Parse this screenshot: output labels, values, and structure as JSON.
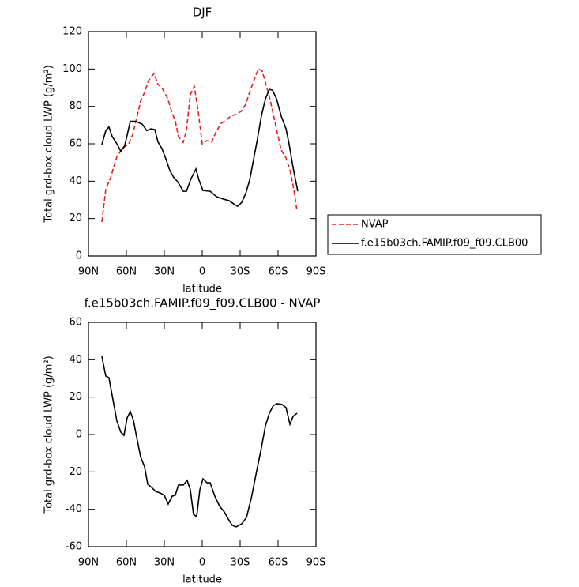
{
  "chart_data": [
    {
      "type": "line",
      "title": "DJF",
      "x_label": "latitude",
      "y_label": "Total grd-box cloud LWP (g/m²)",
      "xlim": [
        90,
        -90
      ],
      "ylim": [
        0,
        120
      ],
      "xticks": [
        {
          "value": 90,
          "label": "90N"
        },
        {
          "value": 60,
          "label": "60N"
        },
        {
          "value": 30,
          "label": "30N"
        },
        0,
        {
          "value": -30,
          "label": "30S"
        },
        {
          "value": -60,
          "label": "60S"
        },
        {
          "value": -90,
          "label": "90S"
        }
      ],
      "yticks": [
        0,
        20,
        40,
        60,
        80,
        100,
        120
      ],
      "legend_position": "right",
      "series": [
        {
          "name": "NVAP",
          "color": "#e8201e",
          "dash": "dashed",
          "x": [
            79.4,
            76.3,
            72.5,
            67.5,
            63.1,
            58.1,
            55,
            51.9,
            48.8,
            45.6,
            42.5,
            38.1,
            35,
            31.9,
            27.5,
            23.8,
            21.3,
            18.8,
            15,
            12.5,
            9.4,
            6.3,
            3.1,
            0,
            -3.8,
            -7.5,
            -10.6,
            -15,
            -19.4,
            -23.1,
            -26.9,
            -30.6,
            -34.4,
            -37.5,
            -40.6,
            -44.4,
            -47.5,
            -50.6,
            -53.1,
            -56.3,
            -59.4,
            -62.5,
            -66.3,
            -69.4,
            -72.5,
            -75
          ],
          "values": [
            18.2,
            35.5,
            41.8,
            53.2,
            57.5,
            60,
            65,
            73.5,
            82.8,
            87.5,
            93.8,
            97.6,
            91.7,
            90,
            84.5,
            76.5,
            72.2,
            63.8,
            60.8,
            67.2,
            86.2,
            90.8,
            76.9,
            60,
            61.7,
            60.8,
            65.9,
            71,
            72.7,
            75.2,
            75.6,
            77.3,
            81.1,
            87.5,
            93.4,
            100.1,
            98.9,
            91.3,
            85.3,
            75.6,
            65.9,
            56.6,
            52.4,
            46,
            35.5,
            24.1
          ]
        },
        {
          "name": "f.e15b03ch.FAMIP.f09_f09.CLB00",
          "color": "#000000",
          "dash": "solid",
          "x": [
            79.4,
            76.3,
            73.8,
            71.3,
            67.5,
            64.4,
            61.3,
            56.9,
            52.5,
            47.5,
            43.8,
            40.6,
            37.5,
            35,
            31.9,
            28.8,
            25.6,
            22.5,
            19.4,
            15,
            12.5,
            8.8,
            5,
            2.5,
            -0.6,
            -6.3,
            -11.3,
            -16.9,
            -21.3,
            -25.6,
            -28.1,
            -31.3,
            -34.4,
            -37.5,
            -40.6,
            -43.8,
            -46.9,
            -50,
            -53.1,
            -55.6,
            -58.8,
            -62.5,
            -66.3,
            -68.8,
            -71.9,
            -75.6
          ],
          "values": [
            59.6,
            67,
            69,
            64,
            60,
            56,
            59,
            72,
            72,
            70.5,
            67,
            68,
            67.6,
            61,
            57.5,
            52,
            45.6,
            42,
            39.7,
            34.6,
            34.6,
            41.4,
            46.5,
            40.5,
            35,
            34.6,
            31.7,
            30.4,
            29.6,
            27.5,
            26.6,
            28.7,
            33.4,
            40.5,
            51.5,
            63,
            75.2,
            84,
            89.1,
            88.7,
            84,
            74.8,
            68,
            59.6,
            47.3,
            34.6
          ]
        }
      ]
    },
    {
      "type": "line",
      "title": "f.e15b03ch.FAMIP.f09_f09.CLB00 - NVAP",
      "x_label": "latitude",
      "y_label": "Total grd-box cloud LWP (g/m²)",
      "xlim": [
        90,
        -90
      ],
      "ylim": [
        -60,
        60
      ],
      "xticks": [
        {
          "value": 90,
          "label": "90N"
        },
        {
          "value": 60,
          "label": "60N"
        },
        {
          "value": 30,
          "label": "30N"
        },
        0,
        {
          "value": -30,
          "label": "30S"
        },
        {
          "value": -60,
          "label": "60S"
        },
        {
          "value": -90,
          "label": "90S"
        }
      ],
      "yticks": [
        -60,
        -40,
        -20,
        0,
        20,
        40,
        60
      ],
      "series": [
        {
          "color": "#000000",
          "dash": "solid",
          "x": [
            79.4,
            76.3,
            73.8,
            71.3,
            67.5,
            64.4,
            61.9,
            59.4,
            56.9,
            54.4,
            51.9,
            48.8,
            45.6,
            43.1,
            40,
            36.9,
            33.1,
            30,
            26.9,
            23.8,
            21.3,
            18.8,
            15,
            11.9,
            9.4,
            6.9,
            4.4,
            1.9,
            -0.6,
            -3.8,
            -6.3,
            -10,
            -13.8,
            -17.5,
            -20.6,
            -23.8,
            -26.9,
            -31.3,
            -35,
            -38.8,
            -42.5,
            -46.3,
            -50,
            -53.1,
            -56.3,
            -59.4,
            -63.1,
            -66.3,
            -69.4,
            -71.9,
            -75
          ],
          "values": [
            41.8,
            31.3,
            30.4,
            21.1,
            7.2,
            1.3,
            -0.4,
            8.9,
            12.3,
            7.6,
            -1.3,
            -11.8,
            -17.3,
            -26.6,
            -28.3,
            -30.4,
            -31.3,
            -32.5,
            -37.2,
            -33,
            -32.5,
            -27,
            -27,
            -24.5,
            -29.6,
            -42.7,
            -43.9,
            -29.6,
            -23.7,
            -25.8,
            -25.8,
            -33,
            -38.4,
            -41.4,
            -45.2,
            -48.6,
            -49.4,
            -47.7,
            -44.4,
            -34.2,
            -21.5,
            -8.9,
            4.6,
            11.4,
            15.6,
            16.5,
            16.1,
            14.4,
            5.5,
            9.7,
            11.4
          ]
        }
      ]
    }
  ]
}
